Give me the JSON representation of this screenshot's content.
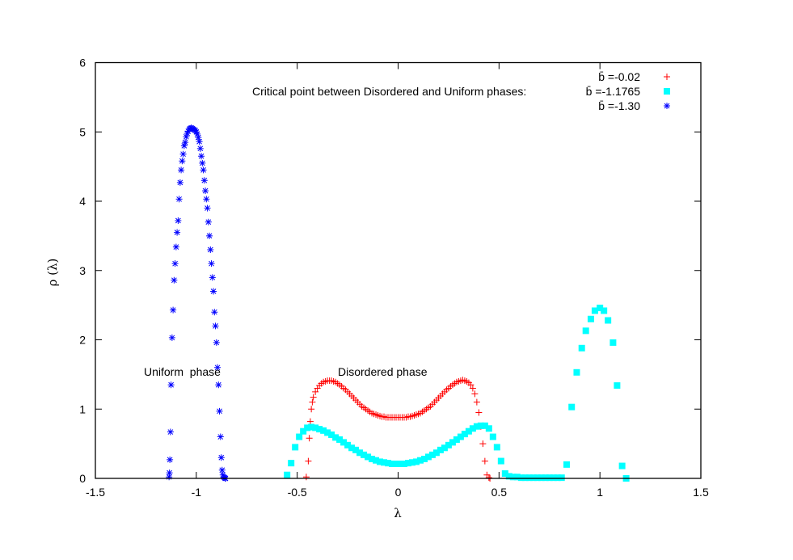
{
  "chart_data": {
    "type": "scatter",
    "title": "",
    "xlabel": "λ",
    "ylabel": "ρ (λ)",
    "xlim": [
      -1.5,
      1.5
    ],
    "ylim": [
      0,
      6
    ],
    "xticks": [
      "-1.5",
      "-1",
      "-0.5",
      "0",
      "0.5",
      "1",
      "1.5"
    ],
    "yticks": [
      "0",
      "1",
      "2",
      "3",
      "4",
      "5",
      "6"
    ],
    "grid": false,
    "legend_position": "top-right",
    "legend_title": "Critical point between Disordered and Uniform phases:",
    "annotations": [
      {
        "text": "Uniform  phase",
        "x": -1.26,
        "y": 1.55
      },
      {
        "text": "Disordered phase",
        "x": -0.31,
        "y": 1.55
      }
    ],
    "series": [
      {
        "name": "b̄ =-0.02",
        "marker": "plus",
        "color": "#ff0000",
        "x": [
          -0.455,
          -0.445,
          -0.44,
          -0.435,
          -0.43,
          -0.425,
          -0.42,
          -0.41,
          -0.4,
          -0.39,
          -0.38,
          -0.37,
          -0.36,
          -0.35,
          -0.34,
          -0.33,
          -0.32,
          -0.31,
          -0.3,
          -0.29,
          -0.28,
          -0.27,
          -0.26,
          -0.25,
          -0.24,
          -0.23,
          -0.22,
          -0.21,
          -0.2,
          -0.19,
          -0.18,
          -0.17,
          -0.16,
          -0.15,
          -0.14,
          -0.13,
          -0.12,
          -0.11,
          -0.1,
          -0.09,
          -0.08,
          -0.07,
          -0.06,
          -0.05,
          -0.04,
          -0.03,
          -0.02,
          -0.01,
          0.0,
          0.01,
          0.02,
          0.03,
          0.04,
          0.05,
          0.06,
          0.07,
          0.08,
          0.09,
          0.1,
          0.11,
          0.12,
          0.13,
          0.14,
          0.15,
          0.16,
          0.17,
          0.18,
          0.19,
          0.2,
          0.21,
          0.22,
          0.23,
          0.24,
          0.25,
          0.26,
          0.27,
          0.28,
          0.29,
          0.3,
          0.31,
          0.32,
          0.33,
          0.34,
          0.35,
          0.36,
          0.37,
          0.38,
          0.39,
          0.4,
          0.41,
          0.42,
          0.43,
          0.44,
          0.45,
          0.455
        ],
        "values": [
          0.02,
          0.25,
          0.58,
          0.82,
          1.0,
          1.1,
          1.17,
          1.25,
          1.3,
          1.34,
          1.37,
          1.39,
          1.4,
          1.41,
          1.41,
          1.41,
          1.4,
          1.39,
          1.37,
          1.35,
          1.33,
          1.3,
          1.28,
          1.25,
          1.22,
          1.19,
          1.16,
          1.13,
          1.1,
          1.07,
          1.04,
          1.02,
          1.0,
          0.98,
          0.96,
          0.94,
          0.93,
          0.92,
          0.91,
          0.9,
          0.89,
          0.89,
          0.88,
          0.88,
          0.88,
          0.88,
          0.88,
          0.88,
          0.88,
          0.88,
          0.88,
          0.88,
          0.88,
          0.89,
          0.89,
          0.9,
          0.91,
          0.92,
          0.93,
          0.94,
          0.96,
          0.98,
          1.0,
          1.02,
          1.04,
          1.07,
          1.1,
          1.13,
          1.16,
          1.19,
          1.22,
          1.25,
          1.28,
          1.3,
          1.33,
          1.35,
          1.37,
          1.39,
          1.4,
          1.41,
          1.42,
          1.41,
          1.4,
          1.38,
          1.35,
          1.3,
          1.22,
          1.1,
          0.95,
          0.75,
          0.5,
          0.25,
          0.05,
          0.01,
          0.0
        ]
      },
      {
        "name": "b̄ =-1.1765",
        "marker": "filled-square",
        "color": "#00ffff",
        "x": [
          -0.55,
          -0.53,
          -0.51,
          -0.49,
          -0.47,
          -0.45,
          -0.43,
          -0.41,
          -0.39,
          -0.37,
          -0.35,
          -0.33,
          -0.31,
          -0.29,
          -0.27,
          -0.25,
          -0.23,
          -0.21,
          -0.19,
          -0.17,
          -0.15,
          -0.13,
          -0.11,
          -0.09,
          -0.07,
          -0.05,
          -0.03,
          -0.01,
          0.01,
          0.03,
          0.05,
          0.07,
          0.09,
          0.11,
          0.13,
          0.15,
          0.17,
          0.19,
          0.21,
          0.23,
          0.25,
          0.27,
          0.29,
          0.31,
          0.33,
          0.35,
          0.37,
          0.39,
          0.41,
          0.43,
          0.45,
          0.47,
          0.49,
          0.51,
          0.53,
          0.55,
          0.57,
          0.59,
          0.61,
          0.63,
          0.65,
          0.67,
          0.69,
          0.71,
          0.73,
          0.75,
          0.77,
          0.79,
          0.81,
          0.835,
          0.86,
          0.885,
          0.91,
          0.93,
          0.955,
          0.975,
          1.0,
          1.02,
          1.04,
          1.065,
          1.085,
          1.11,
          1.13
        ],
        "values": [
          0.05,
          0.22,
          0.45,
          0.6,
          0.68,
          0.73,
          0.74,
          0.73,
          0.71,
          0.69,
          0.66,
          0.63,
          0.59,
          0.56,
          0.52,
          0.48,
          0.44,
          0.41,
          0.37,
          0.34,
          0.31,
          0.28,
          0.26,
          0.24,
          0.23,
          0.22,
          0.21,
          0.21,
          0.21,
          0.21,
          0.22,
          0.23,
          0.24,
          0.26,
          0.28,
          0.31,
          0.34,
          0.37,
          0.41,
          0.44,
          0.48,
          0.52,
          0.56,
          0.6,
          0.64,
          0.68,
          0.72,
          0.75,
          0.76,
          0.76,
          0.72,
          0.6,
          0.45,
          0.25,
          0.07,
          0.03,
          0.02,
          0.02,
          0.01,
          0.01,
          0.01,
          0.01,
          0.01,
          0.01,
          0.01,
          0.01,
          0.01,
          0.01,
          0.01,
          0.2,
          1.03,
          1.53,
          1.88,
          2.13,
          2.3,
          2.42,
          2.46,
          2.42,
          2.28,
          1.96,
          1.34,
          0.18,
          0.0
        ]
      },
      {
        "name": "b̄ =-1.30",
        "marker": "star",
        "color": "#0000ff",
        "x": [
          -1.135,
          -1.133,
          -1.131,
          -1.128,
          -1.125,
          -1.12,
          -1.115,
          -1.11,
          -1.105,
          -1.1,
          -1.095,
          -1.09,
          -1.085,
          -1.08,
          -1.075,
          -1.07,
          -1.065,
          -1.06,
          -1.055,
          -1.05,
          -1.045,
          -1.04,
          -1.035,
          -1.03,
          -1.025,
          -1.02,
          -1.015,
          -1.01,
          -1.005,
          -1.0,
          -0.995,
          -0.99,
          -0.985,
          -0.98,
          -0.975,
          -0.97,
          -0.965,
          -0.96,
          -0.955,
          -0.95,
          -0.945,
          -0.94,
          -0.935,
          -0.93,
          -0.925,
          -0.92,
          -0.915,
          -0.91,
          -0.905,
          -0.9,
          -0.895,
          -0.89,
          -0.885,
          -0.88,
          -0.876,
          -0.872,
          -0.868,
          -0.864,
          -0.86,
          -0.857,
          -0.855
        ],
        "values": [
          0.02,
          0.08,
          0.27,
          0.67,
          1.35,
          2.03,
          2.43,
          2.86,
          3.1,
          3.34,
          3.55,
          3.72,
          4.03,
          4.27,
          4.45,
          4.58,
          4.68,
          4.8,
          4.85,
          4.93,
          4.98,
          5.01,
          5.04,
          5.05,
          5.06,
          5.05,
          5.04,
          5.03,
          5.02,
          5.0,
          4.97,
          4.92,
          4.86,
          4.76,
          4.65,
          4.55,
          4.45,
          4.3,
          4.15,
          4.03,
          3.9,
          3.7,
          3.5,
          3.3,
          3.1,
          2.9,
          2.7,
          2.4,
          2.2,
          1.96,
          1.6,
          1.35,
          0.97,
          0.6,
          0.3,
          0.12,
          0.05,
          0.02,
          0.01,
          0.0,
          0.0
        ]
      }
    ]
  },
  "legend": {
    "title": "Critical point between Disordered and Uniform phases:",
    "entries": [
      "b̄ =-0.02",
      "b̄ =-1.1765",
      "b̄ =-1.30"
    ]
  }
}
